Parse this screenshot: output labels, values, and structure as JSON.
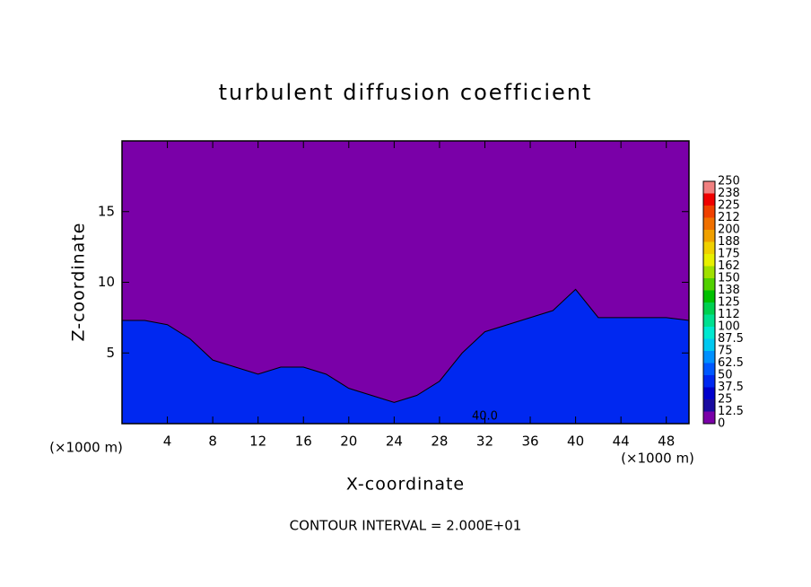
{
  "chart_data": {
    "type": "contour",
    "title": "turbulent diffusion coefficient",
    "x_label": "X-coordinate",
    "y_label": "Z-coordinate",
    "x_unit_labels": [
      "(×1000 m)",
      "(×1000 m)"
    ],
    "footer": "CONTOUR INTERVAL = 2.000E+01",
    "x": [
      0,
      2,
      4,
      6,
      8,
      10,
      12,
      14,
      16,
      18,
      20,
      22,
      24,
      26,
      28,
      30,
      32,
      34,
      36,
      38,
      40,
      42,
      44,
      46,
      48,
      50
    ],
    "values": [
      7.3,
      7.3,
      7,
      6,
      4.5,
      4,
      3.5,
      4,
      4,
      3.5,
      2.5,
      2,
      1.5,
      2,
      3,
      5,
      6.5,
      7,
      7.5,
      8,
      9.5,
      7.5,
      7.5,
      7.5,
      7.5,
      7.3
    ],
    "xlim": [
      0,
      50
    ],
    "ylim": [
      0,
      20
    ],
    "xticks": [
      4,
      8,
      12,
      16,
      20,
      24,
      28,
      32,
      36,
      40,
      44,
      48
    ],
    "yticks": [
      5,
      10,
      15
    ],
    "annotations": [
      {
        "text": "40.0",
        "x": 32,
        "z": 0.5
      }
    ],
    "colorbar": {
      "levels": [
        0,
        12.5,
        25,
        37.5,
        50,
        62.5,
        75,
        87.5,
        100,
        112,
        125,
        138,
        150,
        162,
        175,
        188,
        200,
        212,
        225,
        238,
        250
      ],
      "colors": [
        "#7a00a8",
        "#1a0ca0",
        "#0000cc",
        "#0028f0",
        "#0058ff",
        "#0090ff",
        "#00c8f0",
        "#00e8d0",
        "#00e090",
        "#00d050",
        "#00c000",
        "#50d000",
        "#a0e000",
        "#e8f000",
        "#f0d000",
        "#f0a000",
        "#f07000",
        "#f04000",
        "#f00000",
        "#f08080"
      ]
    }
  }
}
